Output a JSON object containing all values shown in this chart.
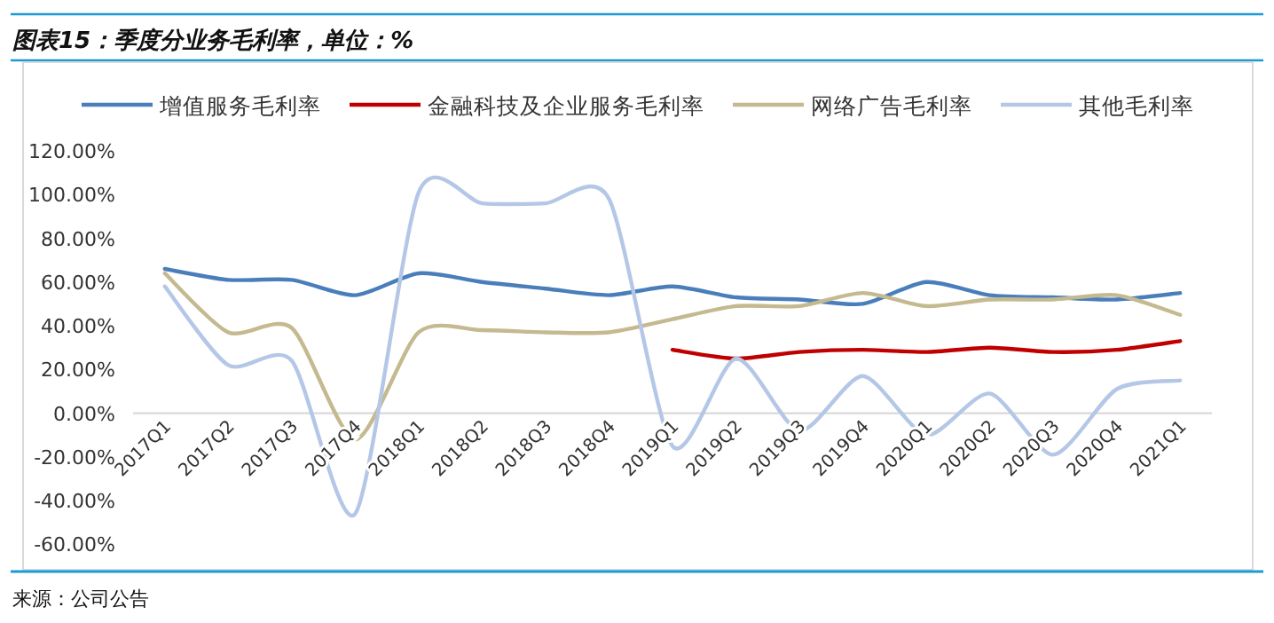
{
  "chart_data": {
    "type": "line",
    "title": "图表15：季度分业务毛利率，单位：%",
    "categories": [
      "2017Q1",
      "2017Q2",
      "2017Q3",
      "2017Q4",
      "2018Q1",
      "2018Q2",
      "2018Q3",
      "2018Q4",
      "2019Q1",
      "2019Q2",
      "2019Q3",
      "2019Q4",
      "2020Q1",
      "2020Q2",
      "2020Q3",
      "2020Q4",
      "2021Q1"
    ],
    "series": [
      {
        "name": "增值服务毛利率",
        "color": "#4a7ebb",
        "values": [
          66,
          61,
          61,
          54,
          64,
          60,
          57,
          54,
          58,
          53,
          52,
          50,
          60,
          54,
          53,
          52,
          55
        ]
      },
      {
        "name": "金融科技及企业服务毛利率",
        "color": "#c00000",
        "values": [
          null,
          null,
          null,
          null,
          null,
          null,
          null,
          null,
          29,
          25,
          28,
          29,
          28,
          30,
          28,
          29,
          33
        ]
      },
      {
        "name": "网络广告毛利率",
        "color": "#c4b98f",
        "values": [
          64,
          37,
          39,
          -12,
          37,
          38,
          37,
          37,
          43,
          49,
          49,
          55,
          49,
          52,
          52,
          54,
          45
        ]
      },
      {
        "name": "其他毛利率",
        "color": "#b4c7e7",
        "values": [
          58,
          22,
          24,
          -46,
          101,
          96,
          96,
          98,
          -15,
          25,
          -8,
          17,
          -10,
          9,
          -19,
          11,
          15
        ]
      }
    ],
    "ylim": [
      -60,
      120
    ],
    "yticks": [
      {
        "value": -60,
        "label": "-60.00%"
      },
      {
        "value": -40,
        "label": "-40.00%"
      },
      {
        "value": -20,
        "label": "-20.00%"
      },
      {
        "value": 0,
        "label": "0.00%"
      },
      {
        "value": 20,
        "label": "20.00%"
      },
      {
        "value": 40,
        "label": "40.00%"
      },
      {
        "value": 60,
        "label": "60.00%"
      },
      {
        "value": 80,
        "label": "80.00%"
      },
      {
        "value": 100,
        "label": "100.00%"
      },
      {
        "value": 120,
        "label": "120.00%"
      }
    ],
    "grid": false,
    "legend": "top",
    "marker": "none",
    "line_style": "solid",
    "annotations": [
      "来源：公司公告"
    ]
  }
}
